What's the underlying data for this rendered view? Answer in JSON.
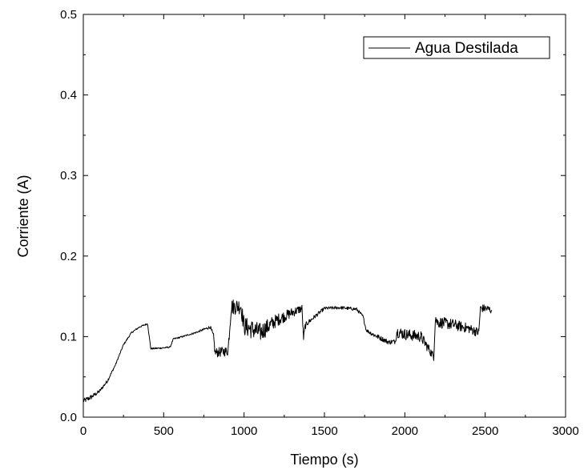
{
  "chart_data": {
    "type": "line",
    "xlabel": "Tiempo (s)",
    "ylabel": "Corriente (A)",
    "xlim": [
      0,
      3000
    ],
    "ylim": [
      0,
      0.5
    ],
    "x_ticks": [
      0,
      500,
      1000,
      1500,
      2000,
      2500,
      3000
    ],
    "x_tick_labels": [
      "0",
      "500",
      "1000",
      "1500",
      "2000",
      "2500",
      "3000"
    ],
    "y_ticks": [
      0,
      0.1,
      0.2,
      0.3,
      0.4,
      0.5
    ],
    "y_tick_labels": [
      "0.0",
      "0.1",
      "0.2",
      "0.3",
      "0.4",
      "0.5"
    ],
    "grid": false,
    "legend_position": "top-right",
    "series": [
      {
        "name": "Agua Destilada",
        "color": "#000000",
        "x": [
          0,
          50,
          100,
          150,
          200,
          250,
          300,
          350,
          400,
          410,
          420,
          500,
          540,
          560,
          600,
          700,
          790,
          810,
          820,
          900,
          920,
          980,
          1000,
          1100,
          1200,
          1300,
          1360,
          1370,
          1380,
          1400,
          1500,
          1600,
          1700,
          1740,
          1760,
          1800,
          1900,
          1940,
          1950,
          2000,
          2100,
          2180,
          2190,
          2200,
          2300,
          2400,
          2460,
          2470,
          2500,
          2540
        ],
        "y": [
          0.02,
          0.025,
          0.032,
          0.045,
          0.065,
          0.09,
          0.105,
          0.112,
          0.116,
          0.1,
          0.085,
          0.086,
          0.087,
          0.097,
          0.099,
          0.105,
          0.112,
          0.1,
          0.08,
          0.082,
          0.137,
          0.138,
          0.113,
          0.105,
          0.12,
          0.13,
          0.135,
          0.098,
          0.113,
          0.118,
          0.135,
          0.136,
          0.134,
          0.125,
          0.108,
          0.103,
          0.093,
          0.094,
          0.106,
          0.103,
          0.1,
          0.075,
          0.125,
          0.118,
          0.115,
          0.11,
          0.105,
          0.135,
          0.135,
          0.133
        ],
        "noise": [
          0.003,
          0.003,
          0.002,
          0.002,
          0.001,
          0.001,
          0.001,
          0.001,
          0.001,
          0.001,
          0.001,
          0.001,
          0.001,
          0.001,
          0.001,
          0.001,
          0.002,
          0.004,
          0.006,
          0.006,
          0.01,
          0.01,
          0.012,
          0.012,
          0.008,
          0.006,
          0.005,
          0.004,
          0.004,
          0.003,
          0.002,
          0.002,
          0.002,
          0.002,
          0.002,
          0.003,
          0.003,
          0.003,
          0.007,
          0.007,
          0.007,
          0.005,
          0.008,
          0.007,
          0.007,
          0.006,
          0.006,
          0.005,
          0.005,
          0.005
        ]
      }
    ]
  }
}
